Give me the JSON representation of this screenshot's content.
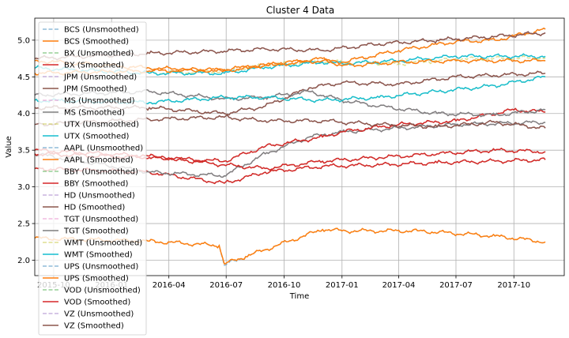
{
  "chart_data": {
    "type": "line",
    "title": "Cluster 4 Data",
    "xlabel": "Time",
    "ylabel": "Value",
    "x_range": [
      "2015-09-01",
      "2017-12-20"
    ],
    "ylim": [
      1.79,
      5.3
    ],
    "grid": true,
    "legend_position": "upper-left",
    "x_ticks": [
      {
        "date": "2015-10-01",
        "label": "2015-10"
      },
      {
        "date": "2016-01-01",
        "label": "2016-01"
      },
      {
        "date": "2016-04-01",
        "label": "2016-04"
      },
      {
        "date": "2016-07-01",
        "label": "2016-07"
      },
      {
        "date": "2016-10-01",
        "label": "2016-10"
      },
      {
        "date": "2017-01-01",
        "label": "2017-01"
      },
      {
        "date": "2017-04-01",
        "label": "2017-04"
      },
      {
        "date": "2017-07-01",
        "label": "2017-07"
      },
      {
        "date": "2017-10-01",
        "label": "2017-10"
      }
    ],
    "y_ticks": [
      {
        "value": 2.0,
        "label": "2.0"
      },
      {
        "value": 2.5,
        "label": "2.5"
      },
      {
        "value": 3.0,
        "label": "3.0"
      },
      {
        "value": 3.5,
        "label": "3.5"
      },
      {
        "value": 4.0,
        "label": "4.0"
      },
      {
        "value": 4.5,
        "label": "4.5"
      },
      {
        "value": 5.0,
        "label": "5.0"
      }
    ],
    "series": [
      {
        "name": "BCS (Unsmoothed)",
        "color": "#1f77b4",
        "dashed": true,
        "x": [
          "2015-09-01",
          "2016-03-01",
          "2016-06-20",
          "2016-06-28",
          "2016-08-01",
          "2016-12-01",
          "2017-01-01",
          "2017-05-01",
          "2017-09-01",
          "2017-11-20"
        ],
        "values": [
          2.3,
          2.26,
          2.2,
          1.93,
          2.05,
          2.42,
          2.4,
          2.4,
          2.33,
          2.25
        ]
      },
      {
        "name": "BCS (Smoothed)",
        "color": "#ff7f0e",
        "dashed": false,
        "x": [
          "2015-09-01",
          "2016-03-01",
          "2016-06-20",
          "2016-06-28",
          "2016-08-01",
          "2016-12-01",
          "2017-01-01",
          "2017-05-01",
          "2017-09-01",
          "2017-11-20"
        ],
        "values": [
          2.3,
          2.26,
          2.2,
          1.95,
          2.05,
          2.42,
          2.4,
          2.4,
          2.33,
          2.25
        ]
      },
      {
        "name": "BX (Unsmoothed)",
        "color": "#2ca02c",
        "dashed": true,
        "x": [
          "2015-09-01",
          "2016-03-01",
          "2016-06-28",
          "2016-09-01",
          "2016-12-01",
          "2017-03-01",
          "2017-06-01",
          "2017-09-01",
          "2017-11-20"
        ],
        "values": [
          3.25,
          3.2,
          3.05,
          3.2,
          3.28,
          3.3,
          3.33,
          3.35,
          3.37
        ]
      },
      {
        "name": "BX (Smoothed)",
        "color": "#d62728",
        "dashed": false,
        "x": [
          "2015-09-01",
          "2016-03-01",
          "2016-06-28",
          "2016-09-01",
          "2016-12-01",
          "2017-03-01",
          "2017-06-01",
          "2017-09-01",
          "2017-11-20"
        ],
        "values": [
          3.25,
          3.2,
          3.05,
          3.2,
          3.28,
          3.3,
          3.33,
          3.35,
          3.37
        ]
      },
      {
        "name": "JPM (Unsmoothed)",
        "color": "#9467bd",
        "dashed": true,
        "x": [
          "2015-09-01",
          "2016-03-01",
          "2016-06-28",
          "2016-09-01",
          "2016-11-10",
          "2017-01-01",
          "2017-04-01",
          "2017-07-01",
          "2017-11-20"
        ],
        "values": [
          4.08,
          4.08,
          4.0,
          4.1,
          4.35,
          4.42,
          4.4,
          4.5,
          4.55
        ]
      },
      {
        "name": "JPM (Smoothed)",
        "color": "#8c564b",
        "dashed": false,
        "x": [
          "2015-09-01",
          "2016-03-01",
          "2016-06-28",
          "2016-09-01",
          "2016-11-10",
          "2017-01-01",
          "2017-04-01",
          "2017-07-01",
          "2017-11-20"
        ],
        "values": [
          4.08,
          4.08,
          4.0,
          4.1,
          4.35,
          4.42,
          4.4,
          4.5,
          4.55
        ]
      },
      {
        "name": "MS (Unsmoothed)",
        "color": "#e377c2",
        "dashed": true,
        "x": [
          "2015-09-01",
          "2016-03-01",
          "2016-06-28",
          "2016-09-01",
          "2016-11-10",
          "2017-01-01",
          "2017-04-01",
          "2017-07-01",
          "2017-11-20"
        ],
        "values": [
          3.45,
          3.2,
          3.15,
          3.45,
          3.68,
          3.75,
          3.8,
          3.85,
          3.88
        ]
      },
      {
        "name": "MS (Smoothed)",
        "color": "#7f7f7f",
        "dashed": false,
        "x": [
          "2015-09-01",
          "2016-03-01",
          "2016-06-28",
          "2016-09-01",
          "2016-11-10",
          "2017-01-01",
          "2017-04-01",
          "2017-07-01",
          "2017-11-20"
        ],
        "values": [
          3.45,
          3.2,
          3.15,
          3.45,
          3.68,
          3.75,
          3.8,
          3.85,
          3.88
        ]
      },
      {
        "name": "UTX (Unsmoothed)",
        "color": "#bcbd22",
        "dashed": true,
        "x": [
          "2015-09-01",
          "2016-03-01",
          "2016-06-28",
          "2016-09-01",
          "2016-12-01",
          "2017-01-01",
          "2017-04-01",
          "2017-07-01",
          "2017-11-20"
        ],
        "values": [
          4.62,
          4.55,
          4.58,
          4.66,
          4.72,
          4.7,
          4.68,
          4.74,
          4.76
        ]
      },
      {
        "name": "UTX (Smoothed)",
        "color": "#17becf",
        "dashed": false,
        "x": [
          "2015-09-01",
          "2016-03-01",
          "2016-06-28",
          "2016-09-01",
          "2016-12-01",
          "2017-01-01",
          "2017-04-01",
          "2017-07-01",
          "2017-11-20"
        ],
        "values": [
          4.62,
          4.55,
          4.55,
          4.63,
          4.7,
          4.68,
          4.72,
          4.78,
          4.78
        ]
      },
      {
        "name": "AAPL (Unsmoothed)",
        "color": "#1f77b4",
        "dashed": true,
        "x": [
          "2015-09-01",
          "2016-03-01",
          "2016-06-28",
          "2016-09-01",
          "2016-12-01",
          "2017-01-01",
          "2017-04-01",
          "2017-07-01",
          "2017-09-01",
          "2017-11-20"
        ],
        "values": [
          4.72,
          4.62,
          4.58,
          4.66,
          4.72,
          4.7,
          4.86,
          4.98,
          5.0,
          5.15
        ]
      },
      {
        "name": "AAPL (Smoothed)",
        "color": "#ff7f0e",
        "dashed": false,
        "x": [
          "2015-09-01",
          "2016-03-01",
          "2016-06-28",
          "2016-09-01",
          "2016-12-01",
          "2017-01-01",
          "2017-04-01",
          "2017-07-01",
          "2017-09-01",
          "2017-11-20"
        ],
        "values": [
          4.72,
          4.62,
          4.58,
          4.66,
          4.72,
          4.7,
          4.86,
          4.98,
          5.0,
          5.15
        ]
      },
      {
        "name": "BBY (Unsmoothed)",
        "color": "#2ca02c",
        "dashed": true,
        "x": [
          "2015-09-01",
          "2016-03-01",
          "2016-06-28",
          "2016-09-01",
          "2016-12-01",
          "2017-01-01",
          "2017-04-01",
          "2017-07-01",
          "2017-10-01",
          "2017-11-20"
        ],
        "values": [
          3.45,
          3.4,
          3.35,
          3.55,
          3.68,
          3.75,
          3.85,
          3.9,
          4.05,
          4.02
        ]
      },
      {
        "name": "BBY (Smoothed)",
        "color": "#d62728",
        "dashed": false,
        "x": [
          "2015-09-01",
          "2016-03-01",
          "2016-06-28",
          "2016-09-01",
          "2016-12-01",
          "2017-01-01",
          "2017-04-01",
          "2017-07-01",
          "2017-10-01",
          "2017-11-20"
        ],
        "values": [
          3.45,
          3.4,
          3.35,
          3.55,
          3.68,
          3.75,
          3.85,
          3.9,
          4.05,
          4.02
        ]
      },
      {
        "name": "HD (Unsmoothed)",
        "color": "#9467bd",
        "dashed": true,
        "x": [
          "2015-09-01",
          "2016-03-01",
          "2016-06-28",
          "2016-09-01",
          "2016-12-01",
          "2017-03-01",
          "2017-06-01",
          "2017-09-01",
          "2017-11-20"
        ],
        "values": [
          4.75,
          4.82,
          4.85,
          4.88,
          4.86,
          4.95,
          5.0,
          5.05,
          5.1
        ]
      },
      {
        "name": "HD (Smoothed)",
        "color": "#8c564b",
        "dashed": false,
        "x": [
          "2015-09-01",
          "2016-03-01",
          "2016-06-28",
          "2016-09-01",
          "2016-12-01",
          "2017-03-01",
          "2017-06-01",
          "2017-09-01",
          "2017-11-20"
        ],
        "values": [
          4.75,
          4.82,
          4.85,
          4.88,
          4.86,
          4.95,
          5.0,
          5.05,
          5.1
        ]
      },
      {
        "name": "TGT (Unsmoothed)",
        "color": "#e377c2",
        "dashed": true,
        "x": [
          "2015-09-01",
          "2016-03-01",
          "2016-06-28",
          "2016-09-01",
          "2016-11-10",
          "2017-01-01",
          "2017-03-01",
          "2017-06-01",
          "2017-09-01",
          "2017-11-20"
        ],
        "values": [
          4.25,
          4.3,
          4.2,
          4.22,
          4.3,
          4.18,
          4.1,
          4.0,
          3.98,
          4.05
        ]
      },
      {
        "name": "TGT (Smoothed)",
        "color": "#7f7f7f",
        "dashed": false,
        "x": [
          "2015-09-01",
          "2016-03-01",
          "2016-06-28",
          "2016-09-01",
          "2016-11-10",
          "2017-01-01",
          "2017-03-01",
          "2017-06-01",
          "2017-09-01",
          "2017-11-20"
        ],
        "values": [
          4.25,
          4.3,
          4.2,
          4.22,
          4.3,
          4.18,
          4.1,
          4.0,
          3.98,
          4.05
        ]
      },
      {
        "name": "WMT (Unsmoothed)",
        "color": "#bcbd22",
        "dashed": true,
        "x": [
          "2015-09-01",
          "2016-03-01",
          "2016-06-28",
          "2016-09-01",
          "2016-12-01",
          "2017-03-01",
          "2017-06-01",
          "2017-09-01",
          "2017-11-20"
        ],
        "values": [
          4.18,
          4.15,
          4.22,
          4.22,
          4.18,
          4.22,
          4.3,
          4.38,
          4.5
        ]
      },
      {
        "name": "WMT (Smoothed)",
        "color": "#17becf",
        "dashed": false,
        "x": [
          "2015-09-01",
          "2016-03-01",
          "2016-06-28",
          "2016-09-01",
          "2016-12-01",
          "2017-03-01",
          "2017-06-01",
          "2017-09-01",
          "2017-11-20"
        ],
        "values": [
          4.18,
          4.15,
          4.22,
          4.22,
          4.18,
          4.22,
          4.3,
          4.38,
          4.5
        ]
      },
      {
        "name": "UPS (Unsmoothed)",
        "color": "#1f77b4",
        "dashed": true,
        "x": [
          "2015-09-01",
          "2016-03-01",
          "2016-06-28",
          "2016-09-01",
          "2016-12-01",
          "2017-01-01",
          "2017-04-01",
          "2017-07-01",
          "2017-11-20"
        ],
        "values": [
          4.55,
          4.58,
          4.6,
          4.66,
          4.75,
          4.65,
          4.7,
          4.72,
          4.72
        ]
      },
      {
        "name": "UPS (Smoothed)",
        "color": "#ff7f0e",
        "dashed": false,
        "x": [
          "2015-09-01",
          "2016-03-01",
          "2016-06-28",
          "2016-09-01",
          "2016-12-01",
          "2017-01-01",
          "2017-04-01",
          "2017-07-01",
          "2017-11-20"
        ],
        "values": [
          4.55,
          4.58,
          4.6,
          4.66,
          4.75,
          4.65,
          4.7,
          4.72,
          4.72
        ]
      },
      {
        "name": "VOD (Unsmoothed)",
        "color": "#2ca02c",
        "dashed": true,
        "x": [
          "2015-09-01",
          "2016-03-01",
          "2016-06-28",
          "2016-09-01",
          "2016-12-01",
          "2017-03-01",
          "2017-06-01",
          "2017-09-01",
          "2017-11-20"
        ],
        "values": [
          3.5,
          3.42,
          3.3,
          3.25,
          3.35,
          3.4,
          3.45,
          3.5,
          3.48
        ]
      },
      {
        "name": "VOD (Smoothed)",
        "color": "#d62728",
        "dashed": false,
        "x": [
          "2015-09-01",
          "2016-03-01",
          "2016-06-28",
          "2016-09-01",
          "2016-12-01",
          "2017-03-01",
          "2017-06-01",
          "2017-09-01",
          "2017-11-20"
        ],
        "values": [
          3.5,
          3.42,
          3.3,
          3.25,
          3.35,
          3.4,
          3.45,
          3.5,
          3.48
        ]
      },
      {
        "name": "VZ (Unsmoothed)",
        "color": "#9467bd",
        "dashed": true,
        "x": [
          "2015-09-01",
          "2016-03-01",
          "2016-06-28",
          "2016-09-01",
          "2016-12-01",
          "2017-03-01",
          "2017-06-01",
          "2017-09-01",
          "2017-11-20"
        ],
        "values": [
          3.85,
          3.92,
          3.95,
          3.9,
          3.9,
          3.85,
          3.82,
          3.88,
          3.8
        ]
      },
      {
        "name": "VZ (Smoothed)",
        "color": "#8c564b",
        "dashed": false,
        "x": [
          "2015-09-01",
          "2016-03-01",
          "2016-06-28",
          "2016-09-01",
          "2016-12-01",
          "2017-03-01",
          "2017-06-01",
          "2017-09-01",
          "2017-11-20"
        ],
        "values": [
          3.85,
          3.92,
          3.95,
          3.9,
          3.9,
          3.85,
          3.82,
          3.88,
          3.8
        ]
      }
    ]
  }
}
